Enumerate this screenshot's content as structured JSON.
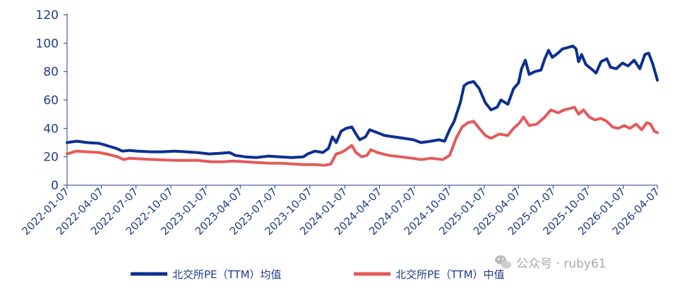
{
  "chart_data": {
    "type": "line",
    "yticks": [
      "0",
      "20",
      "40",
      "60",
      "80",
      "100",
      "120"
    ],
    "ylim": [
      0,
      120
    ],
    "xticks": [
      "2022-01-07",
      "2022-04-07",
      "2022-07-07",
      "2022-10-07",
      "2023-01-07",
      "2023-04-07",
      "2023-07-07",
      "2023-10-07",
      "2024-01-07",
      "2024-04-07",
      "2024-07-07",
      "2024-10-07",
      "2025-01-07",
      "2025-04-07",
      "2025-07-07",
      "2025-10-07",
      "2026-01-07",
      "2026-04-07"
    ],
    "xlim": [
      "2022-01-07",
      "2026-04-07"
    ],
    "grid": false,
    "legend_position": "bottom",
    "series": [
      {
        "name": "北交所PE（TTM）均值",
        "color": "#0d2f8f",
        "points": [
          [
            "2022-01-07",
            30
          ],
          [
            "2022-02-01",
            31
          ],
          [
            "2022-03-01",
            30
          ],
          [
            "2022-04-01",
            29.5
          ],
          [
            "2022-04-20",
            28
          ],
          [
            "2022-05-15",
            26
          ],
          [
            "2022-06-01",
            24
          ],
          [
            "2022-06-20",
            24.5
          ],
          [
            "2022-07-10",
            24
          ],
          [
            "2022-08-15",
            23.5
          ],
          [
            "2022-09-15",
            23.5
          ],
          [
            "2022-10-15",
            24
          ],
          [
            "2022-11-15",
            23.5
          ],
          [
            "2022-12-15",
            23
          ],
          [
            "2023-01-15",
            22
          ],
          [
            "2023-02-15",
            22.5
          ],
          [
            "2023-03-10",
            23
          ],
          [
            "2023-03-25",
            21
          ],
          [
            "2023-04-20",
            20
          ],
          [
            "2023-05-20",
            19.5
          ],
          [
            "2023-06-20",
            20.5
          ],
          [
            "2023-07-20",
            20
          ],
          [
            "2023-08-20",
            19.5
          ],
          [
            "2023-09-20",
            20
          ],
          [
            "2023-10-01",
            22
          ],
          [
            "2023-10-20",
            24
          ],
          [
            "2023-11-10",
            23
          ],
          [
            "2023-11-25",
            26
          ],
          [
            "2023-12-05",
            34
          ],
          [
            "2023-12-15",
            30
          ],
          [
            "2023-12-28",
            38
          ],
          [
            "2024-01-10",
            40
          ],
          [
            "2024-01-25",
            41
          ],
          [
            "2024-02-05",
            36
          ],
          [
            "2024-02-15",
            32
          ],
          [
            "2024-03-01",
            34
          ],
          [
            "2024-03-12",
            39
          ],
          [
            "2024-04-01",
            37
          ],
          [
            "2024-04-20",
            35
          ],
          [
            "2024-05-15",
            34
          ],
          [
            "2024-06-10",
            33
          ],
          [
            "2024-07-05",
            32
          ],
          [
            "2024-07-25",
            30
          ],
          [
            "2024-08-20",
            31
          ],
          [
            "2024-09-10",
            32
          ],
          [
            "2024-09-25",
            31
          ],
          [
            "2024-10-08",
            39
          ],
          [
            "2024-10-20",
            45
          ],
          [
            "2024-11-05",
            58
          ],
          [
            "2024-11-15",
            70
          ],
          [
            "2024-11-25",
            72
          ],
          [
            "2024-12-10",
            73
          ],
          [
            "2024-12-25",
            68
          ],
          [
            "2025-01-10",
            58
          ],
          [
            "2025-01-25",
            53
          ],
          [
            "2025-02-10",
            55
          ],
          [
            "2025-02-20",
            60
          ],
          [
            "2025-03-10",
            57
          ],
          [
            "2025-03-25",
            68
          ],
          [
            "2025-04-07",
            72
          ],
          [
            "2025-04-15",
            82
          ],
          [
            "2025-04-25",
            88
          ],
          [
            "2025-05-05",
            78
          ],
          [
            "2025-05-20",
            80
          ],
          [
            "2025-06-05",
            81
          ],
          [
            "2025-06-15",
            89
          ],
          [
            "2025-06-25",
            95
          ],
          [
            "2025-07-05",
            90
          ],
          [
            "2025-07-20",
            93
          ],
          [
            "2025-08-01",
            96
          ],
          [
            "2025-08-15",
            97
          ],
          [
            "2025-08-28",
            98
          ],
          [
            "2025-09-05",
            96
          ],
          [
            "2025-09-12",
            87
          ],
          [
            "2025-09-20",
            92
          ],
          [
            "2025-10-01",
            85
          ],
          [
            "2025-10-15",
            82
          ],
          [
            "2025-10-28",
            79
          ],
          [
            "2025-11-10",
            87
          ],
          [
            "2025-11-25",
            89
          ],
          [
            "2025-12-05",
            83
          ],
          [
            "2025-12-20",
            82
          ],
          [
            "2026-01-05",
            86
          ],
          [
            "2026-01-20",
            84
          ],
          [
            "2026-02-05",
            88
          ],
          [
            "2026-02-20",
            82
          ],
          [
            "2026-03-05",
            92
          ],
          [
            "2026-03-15",
            93
          ],
          [
            "2026-03-25",
            86
          ],
          [
            "2026-04-07",
            74
          ]
        ]
      },
      {
        "name": "北交所PE（TTM）中值",
        "color": "#e45a5a",
        "points": [
          [
            "2022-01-07",
            22
          ],
          [
            "2022-02-01",
            24
          ],
          [
            "2022-03-01",
            23.5
          ],
          [
            "2022-04-01",
            23
          ],
          [
            "2022-04-20",
            22
          ],
          [
            "2022-05-20",
            20
          ],
          [
            "2022-06-05",
            18
          ],
          [
            "2022-06-20",
            19
          ],
          [
            "2022-07-20",
            18.5
          ],
          [
            "2022-09-01",
            18
          ],
          [
            "2022-10-15",
            17.5
          ],
          [
            "2022-11-15",
            17.5
          ],
          [
            "2022-12-15",
            17.5
          ],
          [
            "2023-01-20",
            16.5
          ],
          [
            "2023-02-20",
            16.5
          ],
          [
            "2023-03-20",
            17
          ],
          [
            "2023-04-20",
            16.5
          ],
          [
            "2023-05-20",
            16
          ],
          [
            "2023-06-20",
            15.5
          ],
          [
            "2023-07-20",
            15.5
          ],
          [
            "2023-08-20",
            15
          ],
          [
            "2023-09-20",
            14.5
          ],
          [
            "2023-10-20",
            14.5
          ],
          [
            "2023-11-15",
            14
          ],
          [
            "2023-12-01",
            15
          ],
          [
            "2023-12-15",
            22
          ],
          [
            "2023-12-28",
            23
          ],
          [
            "2024-01-10",
            25
          ],
          [
            "2024-01-25",
            28
          ],
          [
            "2024-02-05",
            23
          ],
          [
            "2024-02-20",
            20
          ],
          [
            "2024-03-05",
            21
          ],
          [
            "2024-03-15",
            25
          ],
          [
            "2024-04-01",
            23
          ],
          [
            "2024-05-01",
            21
          ],
          [
            "2024-06-01",
            20
          ],
          [
            "2024-07-01",
            19
          ],
          [
            "2024-07-25",
            18
          ],
          [
            "2024-08-20",
            19
          ],
          [
            "2024-09-20",
            18
          ],
          [
            "2024-10-08",
            21
          ],
          [
            "2024-10-25",
            33
          ],
          [
            "2024-11-10",
            41
          ],
          [
            "2024-11-25",
            44
          ],
          [
            "2024-12-10",
            45
          ],
          [
            "2024-12-25",
            40
          ],
          [
            "2025-01-10",
            35
          ],
          [
            "2025-01-25",
            33
          ],
          [
            "2025-02-15",
            36
          ],
          [
            "2025-03-10",
            35
          ],
          [
            "2025-03-25",
            40
          ],
          [
            "2025-04-10",
            44
          ],
          [
            "2025-04-20",
            48
          ],
          [
            "2025-05-05",
            42
          ],
          [
            "2025-05-25",
            43
          ],
          [
            "2025-06-15",
            48
          ],
          [
            "2025-07-01",
            53
          ],
          [
            "2025-07-20",
            51
          ],
          [
            "2025-08-05",
            53
          ],
          [
            "2025-08-20",
            54
          ],
          [
            "2025-09-01",
            55
          ],
          [
            "2025-09-12",
            50
          ],
          [
            "2025-09-25",
            53
          ],
          [
            "2025-10-10",
            48
          ],
          [
            "2025-10-25",
            46
          ],
          [
            "2025-11-10",
            47
          ],
          [
            "2025-11-25",
            45
          ],
          [
            "2025-12-10",
            41
          ],
          [
            "2025-12-25",
            40
          ],
          [
            "2026-01-10",
            42
          ],
          [
            "2026-01-25",
            40
          ],
          [
            "2026-02-10",
            43
          ],
          [
            "2026-02-25",
            39
          ],
          [
            "2026-03-10",
            44
          ],
          [
            "2026-03-20",
            43
          ],
          [
            "2026-03-30",
            38
          ],
          [
            "2026-04-07",
            37
          ]
        ]
      }
    ]
  },
  "watermark": {
    "text": "公众号 · ruby61",
    "icon": "wechat-icon",
    "color": "#a8a8a8"
  }
}
